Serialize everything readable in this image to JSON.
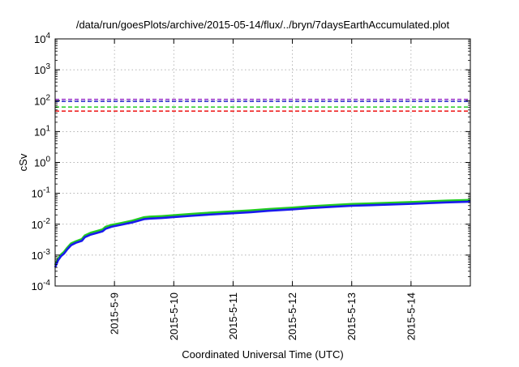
{
  "chart_data": {
    "type": "line",
    "title": "/data/run/goesPlots/archive/2015-05-14/flux/../bryn/7daysEarthAccumulated.plot",
    "xlabel": "Coordinated Universal Time (UTC)",
    "ylabel": "cSv",
    "yscale": "log",
    "ylim": [
      0.0001,
      10000
    ],
    "xlim": [
      0,
      7
    ],
    "grid": true,
    "legend": "none",
    "y_ticks": [
      {
        "value": 0.0001,
        "base": "10",
        "exp": "-4"
      },
      {
        "value": 0.001,
        "base": "10",
        "exp": "-3"
      },
      {
        "value": 0.01,
        "base": "10",
        "exp": "-2"
      },
      {
        "value": 0.1,
        "base": "10",
        "exp": "-1"
      },
      {
        "value": 1,
        "base": "10",
        "exp": "0"
      },
      {
        "value": 10,
        "base": "10",
        "exp": "1"
      },
      {
        "value": 100,
        "base": "10",
        "exp": "2"
      },
      {
        "value": 1000,
        "base": "10",
        "exp": "3"
      },
      {
        "value": 10000,
        "base": "10",
        "exp": "4"
      }
    ],
    "x_ticks": [
      {
        "value": 1,
        "label": "2015-5-9"
      },
      {
        "value": 2,
        "label": "2015-5-10"
      },
      {
        "value": 3,
        "label": "2015-5-11"
      },
      {
        "value": 4,
        "label": "2015-5-12"
      },
      {
        "value": 5,
        "label": "2015-5-13"
      },
      {
        "value": 6,
        "label": "2015-5-14"
      }
    ],
    "thresholds": [
      {
        "value": 110,
        "color": "#9933cc"
      },
      {
        "value": 95,
        "color": "#2b2bd0"
      },
      {
        "value": 62,
        "color": "#22cc22"
      },
      {
        "value": 46,
        "color": "#ee1111"
      }
    ],
    "series": [
      {
        "color": "#22cc22",
        "x": [
          0,
          0.05,
          0.1,
          0.15,
          0.2,
          0.27,
          0.35,
          0.45,
          0.5,
          0.6,
          0.7,
          0.8,
          0.85,
          0.95,
          1.1,
          1.3,
          1.5,
          1.6,
          1.8,
          2.0,
          2.3,
          2.6,
          3.0,
          3.3,
          3.6,
          4.0,
          4.3,
          4.6,
          5.0,
          5.3,
          5.6,
          6.0,
          6.3,
          6.6,
          7.0
        ],
        "y": [
          0.00048,
          0.00078,
          0.00105,
          0.00128,
          0.0017,
          0.0024,
          0.0028,
          0.0033,
          0.0043,
          0.0053,
          0.006,
          0.0068,
          0.0082,
          0.0095,
          0.0108,
          0.013,
          0.0168,
          0.0175,
          0.0183,
          0.0195,
          0.0215,
          0.0235,
          0.026,
          0.028,
          0.031,
          0.0345,
          0.038,
          0.041,
          0.045,
          0.047,
          0.049,
          0.052,
          0.055,
          0.058,
          0.061
        ]
      },
      {
        "color": "#1a1aee",
        "x": [
          0,
          0.05,
          0.1,
          0.15,
          0.2,
          0.27,
          0.35,
          0.45,
          0.5,
          0.6,
          0.7,
          0.8,
          0.85,
          0.95,
          1.1,
          1.3,
          1.5,
          1.6,
          1.8,
          2.0,
          2.3,
          2.6,
          3.0,
          3.3,
          3.6,
          4.0,
          4.3,
          4.6,
          5.0,
          5.3,
          5.6,
          6.0,
          6.3,
          6.6,
          7.0
        ],
        "y": [
          0.0004,
          0.00068,
          0.00093,
          0.00112,
          0.0015,
          0.0021,
          0.0025,
          0.0029,
          0.0038,
          0.0046,
          0.0052,
          0.0059,
          0.0071,
          0.0083,
          0.0095,
          0.0114,
          0.0146,
          0.0152,
          0.0159,
          0.017,
          0.0187,
          0.0205,
          0.0227,
          0.0245,
          0.0272,
          0.0302,
          0.0333,
          0.0359,
          0.0395,
          0.0412,
          0.043,
          0.0456,
          0.0482,
          0.0508,
          0.0535
        ]
      }
    ]
  }
}
